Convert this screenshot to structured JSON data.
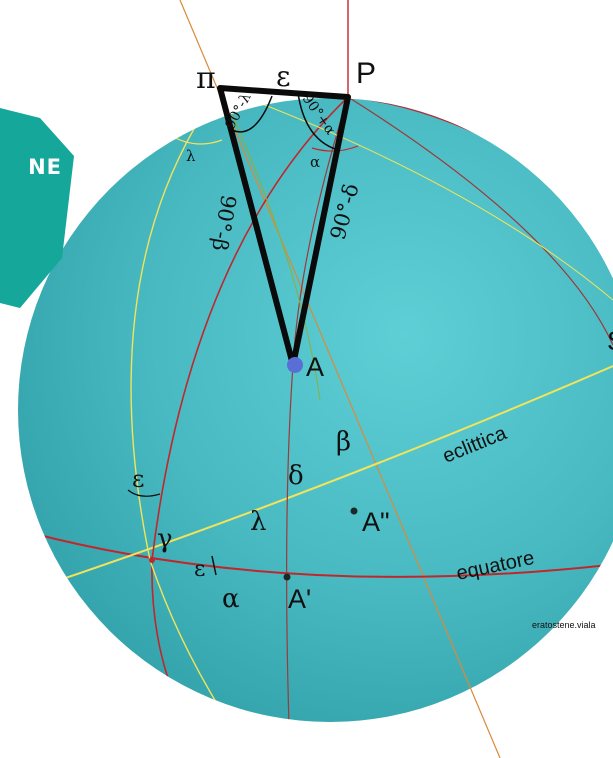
{
  "badge": {
    "text": "NE"
  },
  "labels": {
    "pi": "π",
    "epsilon_top": "ε",
    "P": "P",
    "angle_90_minus_lambda": "90°-λ",
    "angle_90_plus_alpha": "90°+α",
    "lambda_small": "λ",
    "alpha_small": "α",
    "side_90_minus_beta": "90°-β",
    "side_90_minus_delta": "90°-δ",
    "A": "A",
    "S_partial": "S",
    "beta": "β",
    "eclittica": "eclittica",
    "delta": "δ",
    "epsilon_left": "ε",
    "A_double": "A\"",
    "gamma": "γ",
    "lambda": "λ",
    "epsilon_gamma": "ε",
    "equatore": "equatore",
    "alpha": "α",
    "A_prime": "A'",
    "watermark": "eratostene.viala"
  },
  "colors": {
    "sphere": "#4cbcc4",
    "equator": "#c0272d",
    "ecliptic": "#f2e35a",
    "axis": "#d88a3c",
    "triangle": "#0a0a0a",
    "point_A": "#5a6fd6",
    "badge": "#14a79a"
  }
}
